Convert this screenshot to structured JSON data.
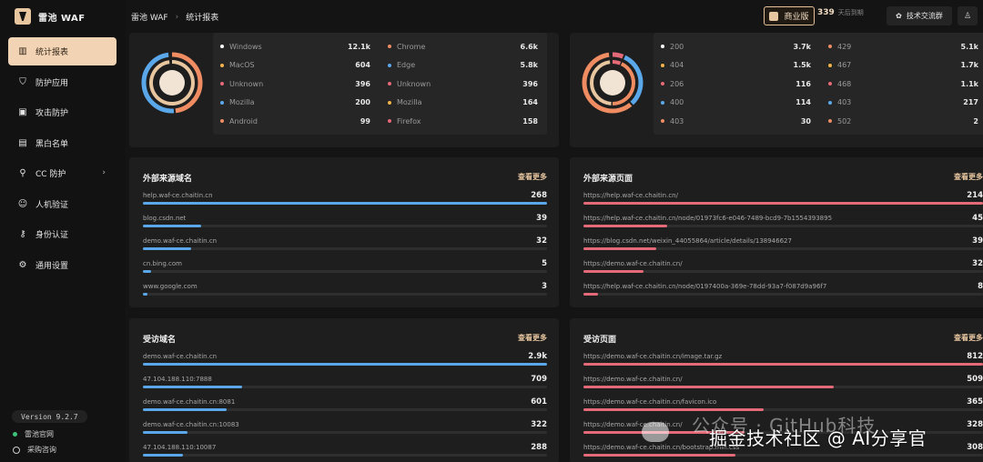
{
  "app": {
    "title": "雷池 WAF"
  },
  "breadcrumb": {
    "root": "雷池 WAF",
    "sep": "›",
    "current": "统计报表"
  },
  "topbar": {
    "edition": "商业版",
    "days_num": "339",
    "days_text": "天后到期",
    "group_label": "技术交流群"
  },
  "sidebar": {
    "items": [
      {
        "label": "统计报表",
        "icon": "bar-chart-icon",
        "active": true
      },
      {
        "label": "防护应用",
        "icon": "shield-icon"
      },
      {
        "label": "攻击防护",
        "icon": "attack-icon"
      },
      {
        "label": "黑白名单",
        "icon": "list-icon"
      },
      {
        "label": "CC 防护",
        "icon": "cc-icon",
        "chevron": "›"
      },
      {
        "label": "人机验证",
        "icon": "robot-icon"
      },
      {
        "label": "身份认证",
        "icon": "key-icon"
      },
      {
        "label": "通用设置",
        "icon": "gear-icon"
      }
    ],
    "version": "Version 9.2.7",
    "links": [
      {
        "label": "雷池官网"
      },
      {
        "label": "采购咨询"
      }
    ]
  },
  "donut_left": {
    "colors": [
      "#5aa7ea",
      "#f08c62",
      "#e8c6a0",
      "#e46a78",
      "#f2d4b5"
    ],
    "legend_a": [
      {
        "label": "Windows",
        "value": "12.1k",
        "color": "#ffffff"
      },
      {
        "label": "MacOS",
        "value": "604",
        "color": "#f2b34c"
      },
      {
        "label": "Unknown",
        "value": "396",
        "color": "#e46a78"
      },
      {
        "label": "Mozilla",
        "value": "200",
        "color": "#5aa7ea"
      },
      {
        "label": "Android",
        "value": "99",
        "color": "#f08c62"
      }
    ],
    "legend_b": [
      {
        "label": "Chrome",
        "value": "6.6k",
        "color": "#f08c62"
      },
      {
        "label": "Edge",
        "value": "5.8k",
        "color": "#5aa7ea"
      },
      {
        "label": "Unknown",
        "value": "396",
        "color": "#e46a78"
      },
      {
        "label": "Mozilla",
        "value": "164",
        "color": "#f2b34c"
      },
      {
        "label": "Firefox",
        "value": "158",
        "color": "#e46a78"
      }
    ]
  },
  "donut_right": {
    "legend_a": [
      {
        "label": "200",
        "value": "3.7k",
        "color": "#ffffff"
      },
      {
        "label": "404",
        "value": "1.5k",
        "color": "#f2b34c"
      },
      {
        "label": "206",
        "value": "116",
        "color": "#e46a78"
      },
      {
        "label": "400",
        "value": "114",
        "color": "#5aa7ea"
      },
      {
        "label": "403",
        "value": "30",
        "color": "#f08c62"
      }
    ],
    "legend_b": [
      {
        "label": "429",
        "value": "5.1k",
        "color": "#f08c62"
      },
      {
        "label": "467",
        "value": "1.7k",
        "color": "#f2b34c"
      },
      {
        "label": "468",
        "value": "1.1k",
        "color": "#e46a78"
      },
      {
        "label": "403",
        "value": "217",
        "color": "#5aa7ea"
      },
      {
        "label": "502",
        "value": "2",
        "color": "#f08c62"
      }
    ]
  },
  "ext_domains": {
    "title": "外部来源域名",
    "more": "查看更多",
    "color": "#5aa7ea",
    "rows": [
      {
        "label": "help.waf-ce.chaitin.cn",
        "value": "268",
        "ratio": 1.0
      },
      {
        "label": "blog.csdn.net",
        "value": "39",
        "ratio": 0.145
      },
      {
        "label": "demo.waf-ce.chaitin.cn",
        "value": "32",
        "ratio": 0.12
      },
      {
        "label": "cn.bing.com",
        "value": "5",
        "ratio": 0.02
      },
      {
        "label": "www.google.com",
        "value": "3",
        "ratio": 0.011
      }
    ]
  },
  "ext_pages": {
    "title": "外部来源页面",
    "more": "查看更多",
    "color": "#e46a78",
    "rows": [
      {
        "label": "https://help.waf-ce.chaitin.cn/",
        "value": "214",
        "ratio": 1.0
      },
      {
        "label": "https://help.waf-ce.chaitin.cn/node/01973fc6-e046-7489-bcd9-7b1554393895",
        "value": "45",
        "ratio": 0.21
      },
      {
        "label": "https://blog.csdn.net/weixin_44055864/article/details/138946627",
        "value": "39",
        "ratio": 0.182
      },
      {
        "label": "https://demo.waf-ce.chaitin.cn/",
        "value": "32",
        "ratio": 0.15
      },
      {
        "label": "https://help.waf-ce.chaitin.cn/node/0197400a-369e-78dd-93a7-f087d9a96f7",
        "value": "8",
        "ratio": 0.037
      }
    ]
  },
  "visited_domains": {
    "title": "受访域名",
    "more": "查看更多",
    "color": "#5aa7ea",
    "rows": [
      {
        "label": "demo.waf-ce.chaitin.cn",
        "value": "2.9k",
        "ratio": 1.0
      },
      {
        "label": "47.104.188.110:7888",
        "value": "709",
        "ratio": 0.245
      },
      {
        "label": "demo.waf-ce.chaitin.cn:8081",
        "value": "601",
        "ratio": 0.207
      },
      {
        "label": "demo.waf-ce.chaitin.cn:10083",
        "value": "322",
        "ratio": 0.111
      },
      {
        "label": "47.104.188.110:10087",
        "value": "288",
        "ratio": 0.099
      }
    ]
  },
  "visited_pages": {
    "title": "受访页面",
    "more": "查看更多",
    "color": "#e46a78",
    "rows": [
      {
        "label": "https://demo.waf-ce.chaitin.cn/image.tar.gz",
        "value": "812",
        "ratio": 1.0
      },
      {
        "label": "https://demo.waf-ce.chaitin.cn/",
        "value": "509",
        "ratio": 0.627
      },
      {
        "label": "https://demo.waf-ce.chaitin.cn/favicon.ico",
        "value": "365",
        "ratio": 0.45
      },
      {
        "label": "https://demo.waf-ce.chaitin.cn/",
        "value": "328",
        "ratio": 0.404
      },
      {
        "label": "https://demo.waf-ce.chaitin.cn/bootstrap.min.css",
        "value": "308",
        "ratio": 0.38
      }
    ]
  },
  "watermark": {
    "line1": "公众号 · GitHub科技",
    "line2": "掘金技术社区 @ AI分享官"
  }
}
